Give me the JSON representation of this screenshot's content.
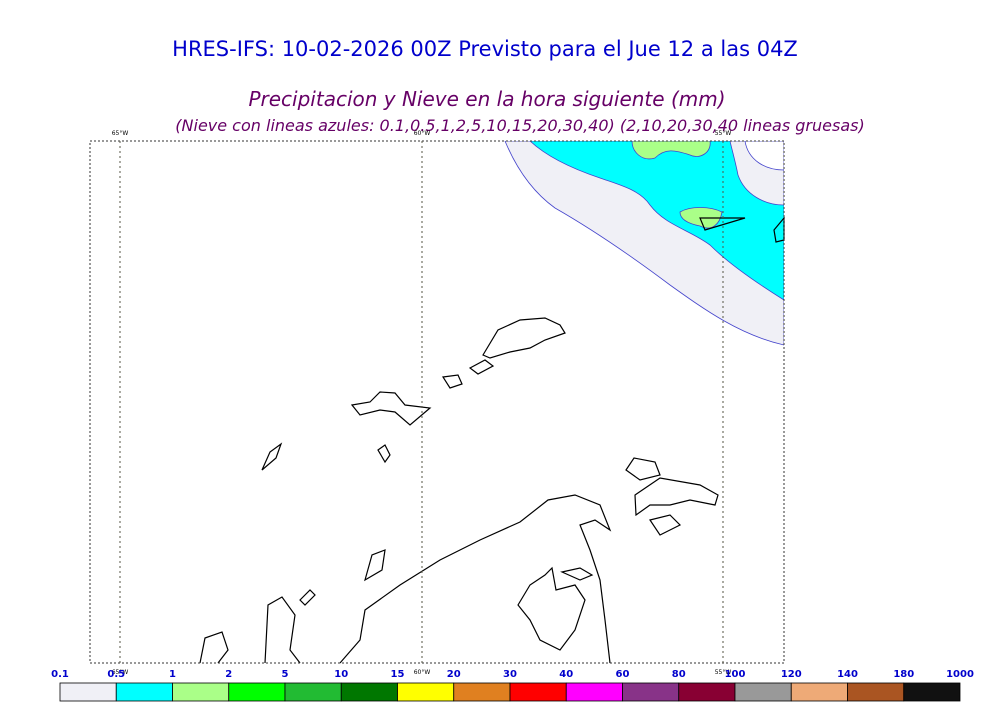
{
  "header": {
    "title": "HRES-IFS: 10-02-2026 00Z Previsto para el Jue 12 a las 04Z",
    "subtitle": "Precipitacion y Nieve en la hora siguiente (mm)",
    "note": "(Nieve con lineas azules: 0.1,0.5,1,2,5,10,15,20,30,40)  (2,10,20,30,40 lineas gruesas)"
  },
  "map": {
    "meridians": [
      "65°W",
      "60°W",
      "55°W"
    ]
  },
  "colorbar": {
    "labels": [
      "0.1",
      "0.5",
      "1",
      "2",
      "5",
      "10",
      "15",
      "20",
      "30",
      "40",
      "60",
      "80",
      "100",
      "120",
      "140",
      "180",
      "1000"
    ],
    "colors": [
      "#f0f0f6",
      "#00ffff",
      "#aaff88",
      "#00ff00",
      "#22bb33",
      "#007700",
      "#ffff00",
      "#e08020",
      "#ff0000",
      "#ff00ff",
      "#883388",
      "#880033",
      "#999999",
      "#eeaa77",
      "#aa5522",
      "#111111"
    ]
  }
}
